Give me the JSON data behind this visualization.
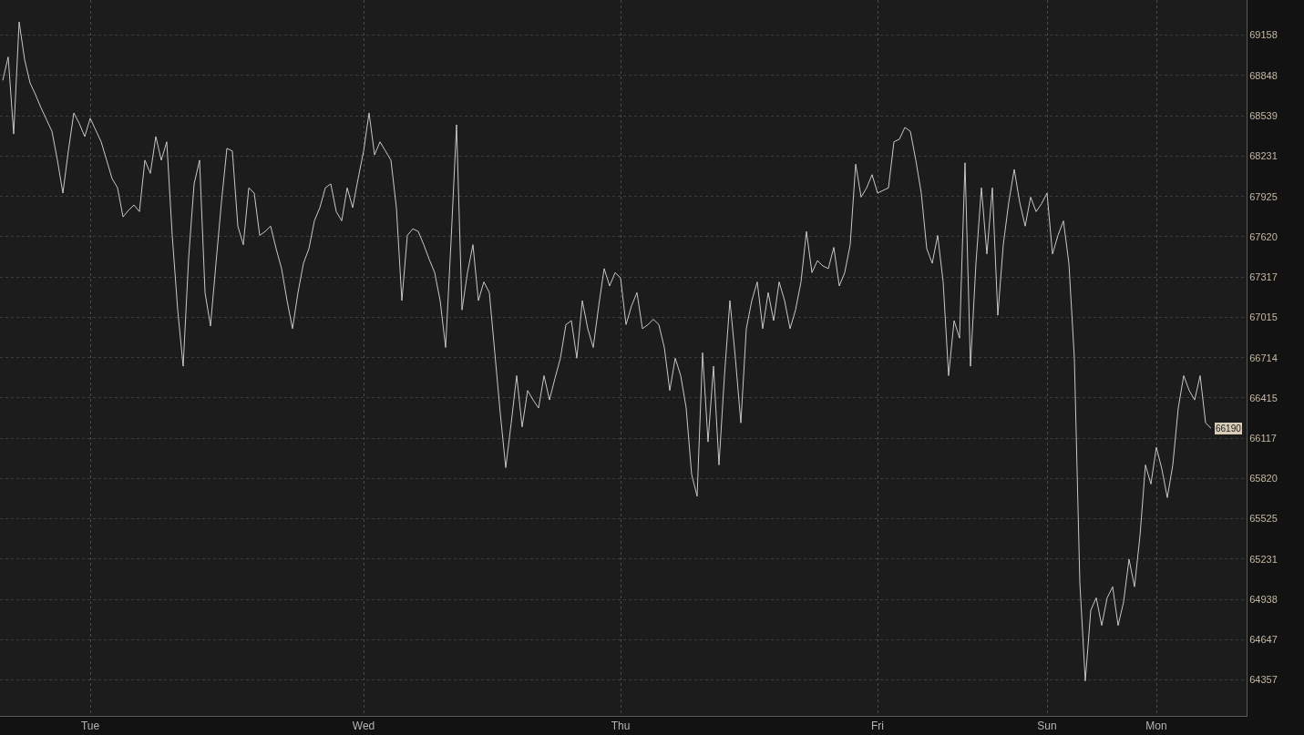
{
  "chart_data": {
    "type": "line",
    "log": true,
    "grid": true,
    "categories": [
      null,
      null,
      null,
      null,
      null,
      null,
      null,
      null,
      null,
      null,
      null,
      null,
      null,
      null,
      null,
      null,
      "Tue",
      null,
      null,
      null,
      null,
      null,
      null,
      null,
      null,
      null,
      null,
      null,
      null,
      null,
      null,
      null,
      null,
      null,
      null,
      null,
      null,
      null,
      null,
      null,
      null,
      null,
      null,
      null,
      null,
      null,
      null,
      null,
      null,
      null,
      null,
      null,
      null,
      null,
      null,
      null,
      null,
      null,
      null,
      null,
      null,
      null,
      null,
      null,
      null,
      null,
      "Wed",
      null,
      null,
      null,
      null,
      null,
      null,
      null,
      null,
      null,
      null,
      null,
      null,
      null,
      null,
      null,
      null,
      null,
      null,
      null,
      null,
      null,
      null,
      null,
      null,
      null,
      null,
      null,
      null,
      null,
      null,
      null,
      null,
      null,
      null,
      null,
      null,
      null,
      null,
      null,
      null,
      null,
      null,
      null,
      null,
      null,
      null,
      "Thu",
      null,
      null,
      null,
      null,
      null,
      null,
      null,
      null,
      null,
      null,
      null,
      null,
      null,
      null,
      null,
      null,
      null,
      null,
      null,
      null,
      null,
      null,
      null,
      null,
      null,
      null,
      null,
      null,
      null,
      null,
      null,
      null,
      null,
      null,
      null,
      null,
      null,
      null,
      null,
      null,
      null,
      null,
      null,
      null,
      null,
      null,
      "Fri",
      null,
      null,
      null,
      null,
      null,
      null,
      null,
      null,
      null,
      null,
      null,
      null,
      null,
      null,
      null,
      null,
      null,
      null,
      null,
      null,
      null,
      null,
      null,
      null,
      null,
      null,
      null,
      null,
      null,
      null,
      "Sun",
      null,
      null,
      null,
      null,
      null,
      null,
      null,
      null,
      null,
      null,
      null,
      null,
      null,
      null,
      null,
      null,
      null,
      null,
      null,
      "Mon",
      null,
      null,
      null,
      null,
      null,
      null,
      null,
      null,
      null,
      null,
      null,
      null,
      null,
      null,
      null,
      null
    ],
    "series": [
      {
        "color": "#c8c8c8",
        "values": [
          68810,
          68990,
          68400,
          69260,
          68970,
          68790,
          68700,
          68600,
          68510,
          68420,
          68200,
          67950,
          68270,
          68560,
          68480,
          68380,
          68520,
          68430,
          68340,
          68200,
          68060,
          67990,
          67770,
          67820,
          67860,
          67810,
          68200,
          68100,
          68380,
          68200,
          68340,
          67630,
          67070,
          66650,
          67460,
          68020,
          68200,
          67200,
          66950,
          67420,
          67880,
          68290,
          68270,
          67700,
          67560,
          67990,
          67950,
          67630,
          67660,
          67700,
          67530,
          67380,
          67140,
          66930,
          67200,
          67420,
          67530,
          67740,
          67840,
          67990,
          68020,
          67810,
          67740,
          67990,
          67840,
          68060,
          68270,
          68560,
          68240,
          68340,
          68270,
          68200,
          67840,
          67140,
          67630,
          67680,
          67660,
          67560,
          67450,
          67350,
          67140,
          66790,
          67590,
          68470,
          67070,
          67350,
          67560,
          67140,
          67280,
          67200,
          66750,
          66300,
          65900,
          66230,
          66580,
          66200,
          66470,
          66400,
          66340,
          66580,
          66400,
          66560,
          66710,
          66960,
          66990,
          66710,
          67140,
          66930,
          66790,
          67100,
          67380,
          67250,
          67350,
          67310,
          66960,
          67100,
          67200,
          66930,
          66960,
          67000,
          66960,
          66790,
          66470,
          66710,
          66580,
          66340,
          65850,
          65690,
          66750,
          66090,
          66650,
          65920,
          66580,
          67140,
          66710,
          66230,
          66930,
          67140,
          67280,
          66930,
          67200,
          66990,
          67280,
          67140,
          66930,
          67070,
          67280,
          67660,
          67350,
          67440,
          67400,
          67380,
          67540,
          67250,
          67350,
          67560,
          68170,
          67920,
          67990,
          68090,
          67950,
          67970,
          67990,
          68340,
          68360,
          68450,
          68420,
          68200,
          67950,
          67530,
          67420,
          67630,
          67280,
          66580,
          66990,
          66860,
          68180,
          66650,
          67420,
          67990,
          67490,
          67990,
          67030,
          67560,
          67880,
          68130,
          67880,
          67700,
          67920,
          67810,
          67870,
          67950,
          67490,
          67630,
          67740,
          67420,
          66710,
          65060,
          64350,
          64860,
          64950,
          64750,
          64950,
          65030,
          64750,
          64920,
          65230,
          65030,
          65400,
          65920,
          65780,
          66050,
          65890,
          65680,
          65920,
          66340,
          66580,
          66470,
          66400,
          66580,
          66230,
          66190,
          null,
          null,
          null,
          null,
          null,
          null
        ],
        "value_labels": [
          null,
          null,
          null,
          null,
          null,
          null,
          null,
          null,
          null,
          null,
          null,
          null,
          null,
          null,
          null,
          null,
          null,
          null,
          null,
          null,
          null,
          null,
          null,
          null,
          null,
          null,
          null,
          null,
          null,
          null,
          null,
          null,
          null,
          null,
          null,
          null,
          null,
          null,
          null,
          null,
          null,
          null,
          null,
          null,
          null,
          null,
          null,
          null,
          null,
          null,
          null,
          null,
          null,
          null,
          null,
          null,
          null,
          null,
          null,
          null,
          null,
          null,
          null,
          null,
          null,
          null,
          null,
          null,
          null,
          null,
          null,
          null,
          null,
          null,
          null,
          null,
          null,
          null,
          null,
          null,
          null,
          null,
          null,
          null,
          null,
          null,
          null,
          null,
          null,
          null,
          null,
          null,
          null,
          null,
          null,
          null,
          null,
          null,
          null,
          null,
          null,
          null,
          null,
          null,
          null,
          null,
          null,
          null,
          null,
          null,
          null,
          null,
          null,
          null,
          null,
          null,
          null,
          null,
          null,
          null,
          null,
          null,
          null,
          null,
          null,
          null,
          null,
          null,
          null,
          null,
          null,
          null,
          null,
          null,
          null,
          null,
          null,
          null,
          null,
          null,
          null,
          null,
          null,
          null,
          null,
          null,
          null,
          null,
          null,
          null,
          null,
          null,
          null,
          null,
          null,
          null,
          null,
          null,
          null,
          null,
          null,
          null,
          null,
          null,
          null,
          null,
          null,
          null,
          null,
          null,
          null,
          null,
          null,
          null,
          null,
          null,
          null,
          null,
          null,
          null,
          null,
          null,
          null,
          null,
          null,
          null,
          null,
          null,
          null,
          null,
          null,
          null,
          null,
          null,
          null,
          null,
          null,
          null,
          null,
          null,
          null,
          null,
          null,
          null,
          null,
          null,
          null,
          null,
          null,
          null,
          null,
          null,
          null,
          null,
          null,
          null,
          null,
          null,
          null,
          null,
          null,
          "66190",
          null,
          null,
          null,
          null,
          null,
          null
        ]
      }
    ],
    "ylim": [
      64100,
      69430
    ],
    "yticks": [
      69158,
      68848,
      68539,
      68231,
      67925,
      67620,
      67317,
      67015,
      66714,
      66415,
      66117,
      65820,
      65525,
      65231,
      64938,
      64647,
      64357
    ]
  }
}
